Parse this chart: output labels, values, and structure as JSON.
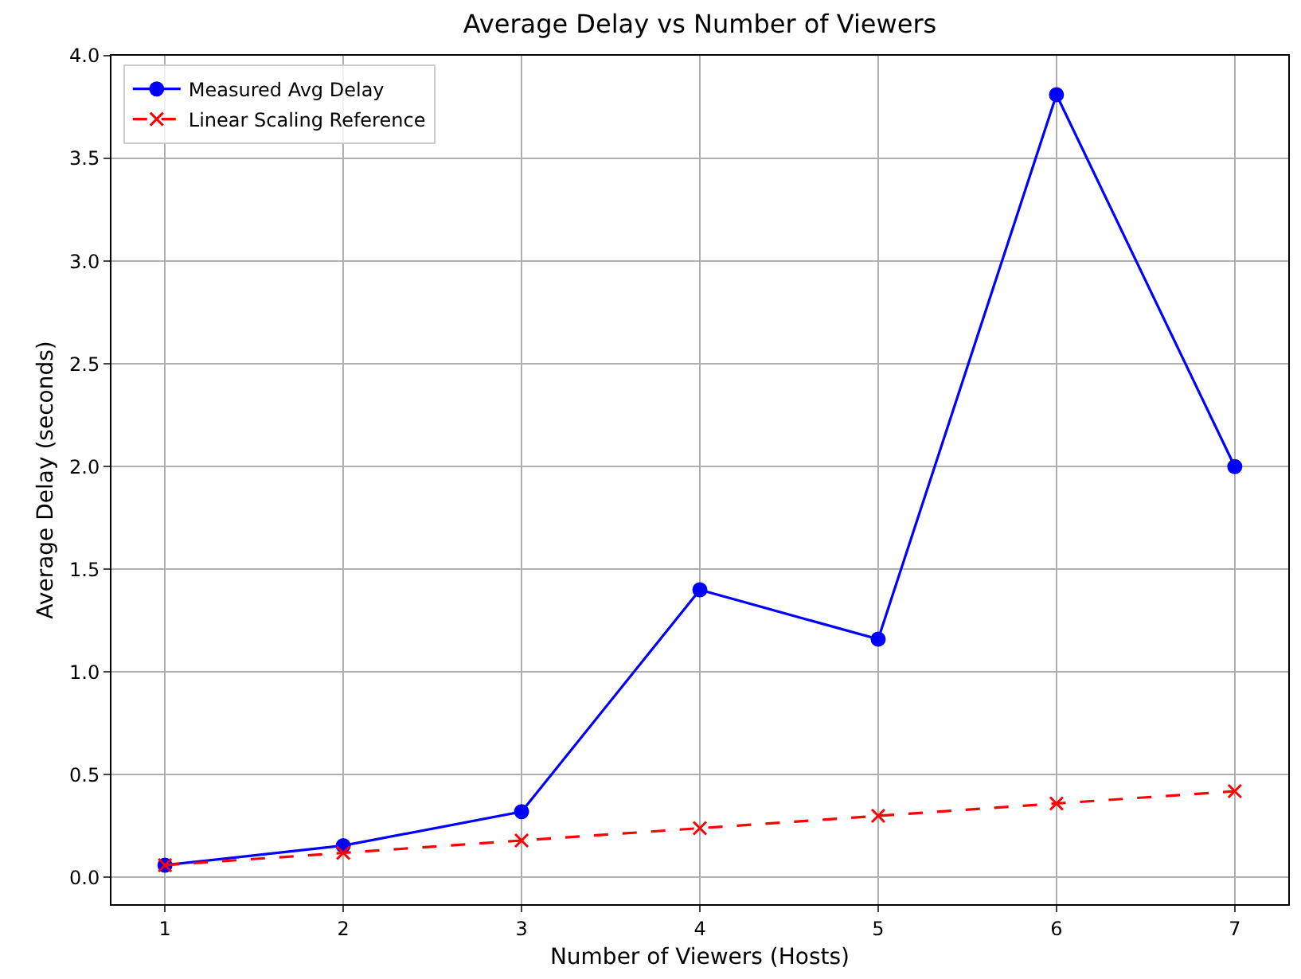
{
  "chart_data": {
    "type": "line",
    "title": "Average Delay vs Number of Viewers",
    "xlabel": "Number of Viewers (Hosts)",
    "ylabel": "Average Delay (seconds)",
    "x": [
      1,
      2,
      3,
      4,
      5,
      6,
      7
    ],
    "series": [
      {
        "name": "Measured Avg Delay",
        "color": "#0000ff",
        "marker": "circle",
        "line_style": "solid",
        "values": [
          0.06,
          0.155,
          0.32,
          1.4,
          1.16,
          3.81,
          2.0
        ]
      },
      {
        "name": "Linear Scaling Reference",
        "color": "#ff0000",
        "marker": "cross",
        "line_style": "dashed",
        "values": [
          0.06,
          0.12,
          0.18,
          0.24,
          0.3,
          0.36,
          0.42
        ]
      }
    ],
    "xlim": [
      0.7,
      7.3
    ],
    "xticks": [
      1,
      2,
      3,
      4,
      5,
      6,
      7
    ],
    "ylim": [
      -0.13,
      4.0
    ],
    "yticks": [
      {
        "value": 0,
        "label": "0.0"
      },
      0.5,
      {
        "value": 1,
        "label": "1.0"
      },
      1.5,
      {
        "value": 2,
        "label": "2.0"
      },
      2.5,
      {
        "value": 3,
        "label": "3.0"
      },
      3.5,
      {
        "value": 4,
        "label": "4.0"
      }
    ],
    "grid": true,
    "legend": "top left"
  }
}
